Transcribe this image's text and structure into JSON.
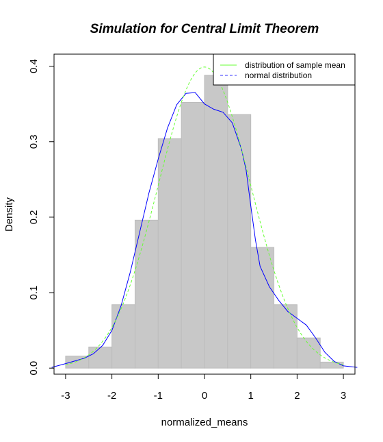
{
  "chart_data": {
    "type": "histogram",
    "title": "Simulation for Central Limit Theorem",
    "xlabel": "normalized_means",
    "ylabel": "Density",
    "xlim": [
      -3.25,
      3.25
    ],
    "ylim": [
      -0.008,
      0.416
    ],
    "x_ticks": [
      -3,
      -2,
      -1,
      0,
      1,
      2,
      3
    ],
    "y_ticks": [
      0.0,
      0.1,
      0.2,
      0.3,
      0.4
    ],
    "x_tick_labels": [
      "-3",
      "-2",
      "-1",
      "0",
      "1",
      "2",
      "3"
    ],
    "y_tick_labels": [
      "0.0",
      "0.1",
      "0.2",
      "0.3",
      "0.4"
    ],
    "bins": [
      {
        "x0": -3.0,
        "x1": -2.5,
        "density": 0.016
      },
      {
        "x0": -2.5,
        "x1": -2.0,
        "density": 0.028
      },
      {
        "x0": -2.0,
        "x1": -1.5,
        "density": 0.084
      },
      {
        "x0": -1.5,
        "x1": -1.0,
        "density": 0.196
      },
      {
        "x0": -1.0,
        "x1": -0.5,
        "density": 0.304
      },
      {
        "x0": -0.5,
        "x1": 0.0,
        "density": 0.352
      },
      {
        "x0": 0.0,
        "x1": 0.5,
        "density": 0.388
      },
      {
        "x0": 0.5,
        "x1": 1.0,
        "density": 0.336
      },
      {
        "x0": 1.0,
        "x1": 1.5,
        "density": 0.16
      },
      {
        "x0": 1.5,
        "x1": 2.0,
        "density": 0.084
      },
      {
        "x0": 2.0,
        "x1": 2.5,
        "density": 0.04
      },
      {
        "x0": 2.5,
        "x1": 3.0,
        "density": 0.008
      }
    ],
    "series": [
      {
        "name": "distribution of sample mean",
        "color": "#0000ff",
        "line_style": "solid",
        "x": [
          -3.3,
          -3.0,
          -2.6,
          -2.4,
          -2.2,
          -2.0,
          -1.8,
          -1.6,
          -1.4,
          -1.2,
          -1.0,
          -0.8,
          -0.6,
          -0.4,
          -0.2,
          0.0,
          0.2,
          0.4,
          0.6,
          0.8,
          0.9,
          1.0,
          1.1,
          1.2,
          1.4,
          1.6,
          1.8,
          2.0,
          2.2,
          2.4,
          2.6,
          2.8,
          3.0,
          3.3
        ],
        "y": [
          0.001,
          0.006,
          0.013,
          0.019,
          0.03,
          0.05,
          0.083,
          0.128,
          0.18,
          0.232,
          0.277,
          0.318,
          0.349,
          0.364,
          0.365,
          0.35,
          0.343,
          0.339,
          0.325,
          0.29,
          0.262,
          0.215,
          0.17,
          0.135,
          0.108,
          0.09,
          0.075,
          0.066,
          0.057,
          0.04,
          0.021,
          0.009,
          0.003,
          0.001
        ]
      },
      {
        "name": "normal distribution",
        "color": "#66ff33",
        "line_style": "dashed"
      }
    ],
    "legend_position": "top-right"
  }
}
